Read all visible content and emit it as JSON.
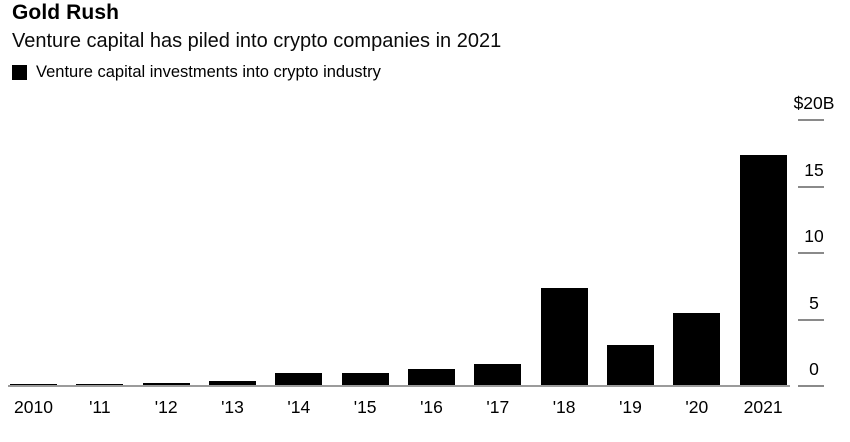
{
  "header": {
    "title": "Gold Rush",
    "subtitle": "Venture capital has piled into crypto companies in 2021"
  },
  "legend": {
    "marker_icon": "black-square-swatch",
    "label": "Venture capital investments into crypto industry",
    "swatch_color": "#000000"
  },
  "chart_data": {
    "type": "bar",
    "title": "Gold Rush",
    "subtitle": "Venture capital has piled into crypto companies in 2021",
    "categories": [
      "2010",
      "'11",
      "'12",
      "'13",
      "'14",
      "'15",
      "'16",
      "'17",
      "'18",
      "'19",
      "'20",
      "2021"
    ],
    "series": [
      {
        "name": "Venture capital investments into crypto industry",
        "values": [
          0.15,
          0.15,
          0.2,
          0.35,
          0.95,
          1.0,
          1.25,
          1.65,
          7.4,
          3.1,
          5.5,
          17.4
        ]
      }
    ],
    "units": "billions USD",
    "ylim": [
      0,
      20
    ],
    "yticks": [
      {
        "value": 20,
        "label": "$20B"
      },
      {
        "value": 15,
        "label": "15"
      },
      {
        "value": 10,
        "label": "10"
      },
      {
        "value": 5,
        "label": "5"
      },
      {
        "value": 0,
        "label": "0"
      }
    ],
    "y_axis_side": "right",
    "grid": false,
    "legend_position": "top-left",
    "bar_color": "#000000",
    "axis_color": "#9b9b9b"
  }
}
